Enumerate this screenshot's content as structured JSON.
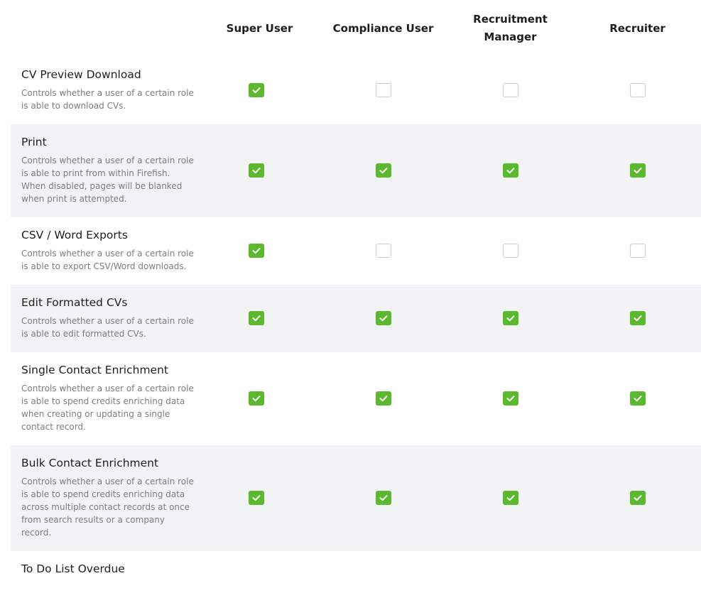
{
  "columns": [
    "Super User",
    "Compliance User",
    "Recruitment Manager",
    "Recruiter"
  ],
  "rows": [
    {
      "title": "CV Preview Download",
      "description": "Controls whether a user of a certain role is able to download CVs.",
      "checked": [
        true,
        false,
        false,
        false
      ]
    },
    {
      "title": "Print",
      "description": "Controls whether a user of a certain role is able to print from within Firefish. When disabled, pages will be blanked when print is attempted.",
      "checked": [
        true,
        true,
        true,
        true
      ]
    },
    {
      "title": "CSV / Word Exports",
      "description": "Controls whether a user of a certain role is able to export CSV/Word downloads.",
      "checked": [
        true,
        false,
        false,
        false
      ]
    },
    {
      "title": "Edit Formatted CVs",
      "description": "Controls whether a user of a certain role is able to edit formatted CVs.",
      "checked": [
        true,
        true,
        true,
        true
      ]
    },
    {
      "title": "Single Contact Enrichment",
      "description": "Controls whether a user of a certain role is able to spend credits enriching data when creating or updating a single contact record.",
      "checked": [
        true,
        true,
        true,
        true
      ]
    },
    {
      "title": "Bulk Contact Enrichment",
      "description": "Controls whether a user of a certain role is able to spend credits enriching data across multiple contact records at once from search results or a company record.",
      "checked": [
        true,
        true,
        true,
        true
      ]
    },
    {
      "title": "To Do List Overdue",
      "description": "",
      "checked": []
    }
  ]
}
